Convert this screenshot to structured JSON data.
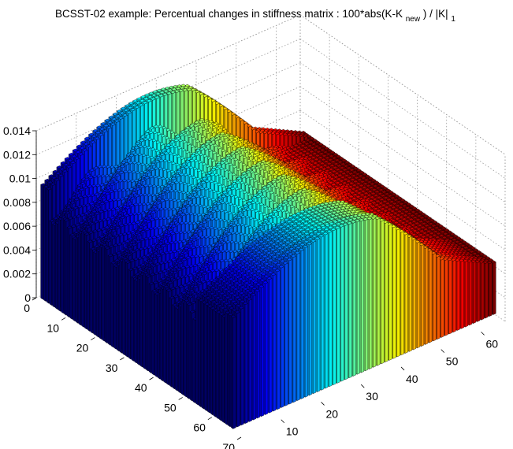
{
  "chart_data": {
    "type": "bar3",
    "title": {
      "prefix": "BCSST-02 example: Percentual changes in stiffness matrix : 100*abs(K-K",
      "subscript": "new",
      "middle": ") / |K|",
      "subscript_end": "1"
    },
    "xlabel": "",
    "ylabel": "",
    "zlabel": "",
    "matrix_size": [
      66,
      66
    ],
    "x_ticks": [
      "10",
      "20",
      "30",
      "40",
      "50",
      "60"
    ],
    "x_tick_values": [
      10,
      20,
      30,
      40,
      50,
      60
    ],
    "y_ticks": [
      "0",
      "10",
      "20",
      "30",
      "40",
      "50",
      "60",
      "70"
    ],
    "y_tick_values": [
      0,
      10,
      20,
      30,
      40,
      50,
      60,
      70
    ],
    "z_ticks": [
      "0",
      "0.002",
      "0.004",
      "0.006",
      "0.008",
      "0.01",
      "0.012",
      "0.014"
    ],
    "z_tick_values": [
      0,
      0.002,
      0.004,
      0.006,
      0.008,
      0.01,
      0.012,
      0.014
    ],
    "xlim": [
      0,
      66
    ],
    "ylim": [
      0,
      70
    ],
    "zlim": [
      0,
      0.014
    ],
    "grid": true,
    "colormap": "jet",
    "colored_by": "column",
    "value_range": [
      0.0072,
      0.0133
    ],
    "value_pattern": "values rise from about 0.0095 near the first column to about 0.013 in the middle, fall to about 0.0075 near column 66; the front rows (high row index) and the first rows are higher, interior rows are lower"
  }
}
